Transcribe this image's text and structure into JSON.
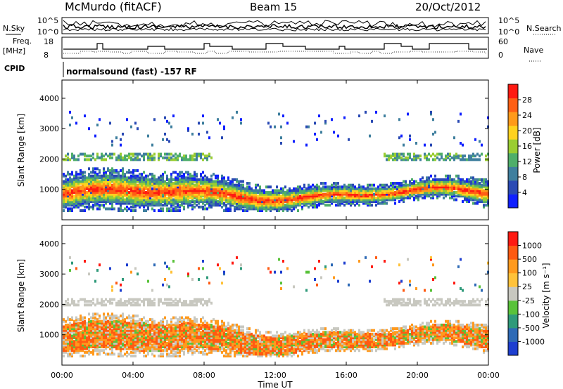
{
  "header": {
    "station": "McMurdo (fitACF)",
    "beam": "Beam 15",
    "date": "20/Oct/2012"
  },
  "strip_labels": {
    "nsky": "N.Sky",
    "nsearch": "N.Search",
    "freq": "Freq.",
    "freq_unit": "[MHz]",
    "nave": "Nave",
    "cpid": "CPID",
    "cpid_value": "normalsound (fast) -157 RF"
  },
  "chart_data": [
    {
      "type": "line",
      "name": "noise-panel",
      "left_ticks": [
        "10^5",
        "10^0"
      ],
      "right_ticks": [
        "10^5",
        "10^0"
      ]
    },
    {
      "type": "line",
      "name": "freq-nave-panel",
      "left_ticks": [
        "18",
        "8"
      ],
      "right_ticks": [
        "60",
        "0"
      ]
    },
    {
      "type": "heatmap",
      "name": "power",
      "ylabel": "Slant Range [km]",
      "yticks": [
        1000,
        2000,
        3000,
        4000
      ],
      "ylim": [
        0,
        4600
      ],
      "xlim": [
        0,
        24
      ],
      "colorbar_label": "Power [dB]",
      "colorbar_ticks": [
        "4",
        "8",
        "12",
        "16",
        "20",
        "24",
        "28"
      ],
      "colorbar_colors": [
        "#1020ff",
        "#2a4ab4",
        "#3f7f9e",
        "#4fae6a",
        "#9acd32",
        "#ffd21f",
        "#ff9a1a",
        "#ff5f14",
        "#ff1a12"
      ]
    },
    {
      "type": "heatmap",
      "name": "velocity",
      "ylabel": "Slant Range [km]",
      "yticks": [
        1000,
        2000,
        3000,
        4000
      ],
      "ylim": [
        0,
        4600
      ],
      "xlim": [
        0,
        24
      ],
      "xlabel": "Time UT",
      "xticks": [
        "00:00",
        "04:00",
        "08:00",
        "12:00",
        "16:00",
        "20:00",
        "00:00"
      ],
      "colorbar_label": "Velocity [m s⁻¹]",
      "colorbar_ticks": [
        "1000",
        "500",
        "100",
        "25",
        "-25",
        "-100",
        "-500",
        "-1000"
      ],
      "colorbar_colors": [
        "#1e3fd0",
        "#2e6ab6",
        "#2f9a7a",
        "#59c23a",
        "#c8c8c0",
        "#ffc23a",
        "#ff9a1e",
        "#ff5a12",
        "#ff1a12"
      ]
    }
  ]
}
